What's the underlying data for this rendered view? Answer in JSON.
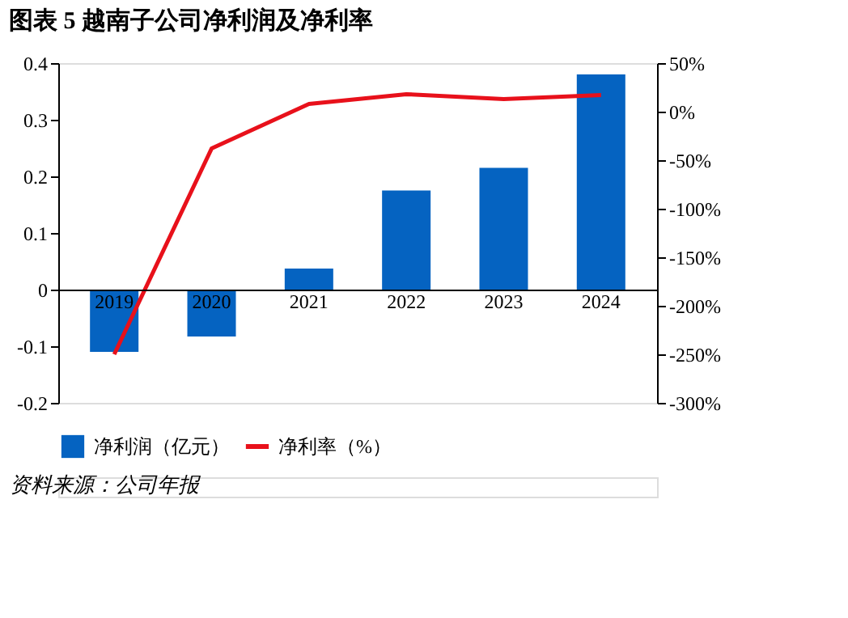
{
  "chart_data": {
    "type": "bar",
    "title": "图表 5 越南子公司净利润及净利率",
    "categories": [
      "2019",
      "2020",
      "2021",
      "2022",
      "2023",
      "2024"
    ],
    "series": [
      {
        "name": "净利润（亿元）",
        "color": "#0563c1",
        "values": [
          -0.11,
          -0.083,
          0.037,
          0.175,
          0.215,
          0.38
        ]
      },
      {
        "name": "净利率（%）",
        "type": "line",
        "axis": "y2",
        "color": "#e8111b",
        "values": [
          -250,
          -38,
          8,
          18,
          13,
          17
        ]
      }
    ],
    "ylim": [
      -0.2,
      0.4
    ],
    "yticks": [
      -0.2,
      -0.1,
      0,
      0.1,
      0.2,
      0.3,
      0.4
    ],
    "y2lim": [
      -300,
      50
    ],
    "y2ticks": [
      {
        "value": -300,
        "label": "-300%"
      },
      {
        "value": -250,
        "label": "-250%"
      },
      {
        "value": -200,
        "label": "-200%"
      },
      {
        "value": -150,
        "label": "-150%"
      },
      {
        "value": -100,
        "label": "-100%"
      },
      {
        "value": -50,
        "label": "-50%"
      },
      {
        "value": 0,
        "label": "0%"
      },
      {
        "value": 50,
        "label": "50%"
      }
    ],
    "grid": false,
    "legend": "bottom",
    "marker": "none",
    "line_style": "solid",
    "annotations": [
      "资料来源：公司年报"
    ]
  }
}
